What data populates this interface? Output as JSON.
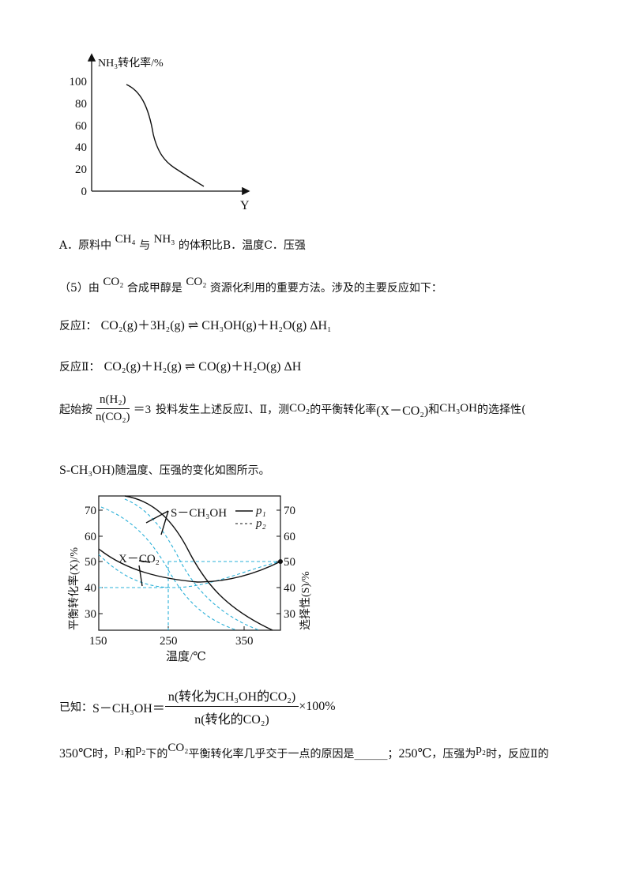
{
  "chart1": {
    "ylabel": "NH₃转化率/%",
    "xlabel": "Y",
    "yticks": [
      "100",
      "80",
      "60",
      "40",
      "20",
      "0"
    ]
  },
  "options_line": {
    "a_prefix": "A．原料中",
    "ch4": "CH₄",
    "yu": "与",
    "nh3": "NH₃",
    "a_suffix": "的体积比",
    "b": "B．温度",
    "c": "C．压强"
  },
  "q5": {
    "lead": "（5）由",
    "co2a": "CO₂",
    "mid": "合成甲醇是",
    "co2b": "CO₂",
    "tail": "资源化利用的重要方法。涉及的主要反应如下："
  },
  "reaction1": {
    "label": "反应Ⅰ：",
    "eq": "CO₂(g)＋3H₂(g) ⇌ CH₃OH(g)＋H₂O(g) ΔH₁"
  },
  "reaction2": {
    "label": "反应Ⅱ：",
    "eq": "CO₂(g)＋H₂(g) ⇌ CO(g)＋H₂O(g) ΔH"
  },
  "ratio_line": {
    "start": "起始按",
    "num": "n(H₂)",
    "den": "n(CO₂)",
    "eq3": "＝3",
    "mid": "投料发生上述反应Ⅰ、Ⅱ，测",
    "co2": "CO₂",
    "mid2": "的平衡转化率",
    "xco2": "(X－CO₂)",
    "and": "和",
    "ch3oh": "CH₃OH",
    "tail": "的选择性("
  },
  "s_line": {
    "s": "S-CH₃OH",
    "tail": ")随温度、压强的变化如图所示。"
  },
  "chart2": {
    "xlabel": "温度/℃",
    "ylabel_left": "平衡转化率(X)/%",
    "ylabel_right": "选择性(S)/%",
    "xticks": [
      "150",
      "250",
      "350"
    ],
    "yticks": [
      "70",
      "60",
      "50",
      "40",
      "30"
    ],
    "label_s": "S－CH₃OH",
    "label_x": "X－CO₂",
    "legend_p1": "p₁",
    "legend_p2": "p₂",
    "color_solid": "#111111",
    "color_dashed": "#2ab0d8"
  },
  "known": {
    "prefix": "已知：",
    "lhs": "S－CH₃OH＝",
    "num": "n(转化为CH₃OH的CO₂)",
    "den": "n(转化的CO₂)",
    "tail": "×100%"
  },
  "last_line": {
    "t350": "350℃",
    "shi": "时，",
    "p1": "p₁",
    "he": "和",
    "p2": "p₂",
    "xiade": "下的",
    "co2": "CO₂",
    "mid": "平衡转化率几乎交于一点的原因是______；",
    "t250": "250℃",
    "mid2": "，压强为",
    "p2b": "p₂",
    "tail": "时，反应Ⅱ的"
  }
}
